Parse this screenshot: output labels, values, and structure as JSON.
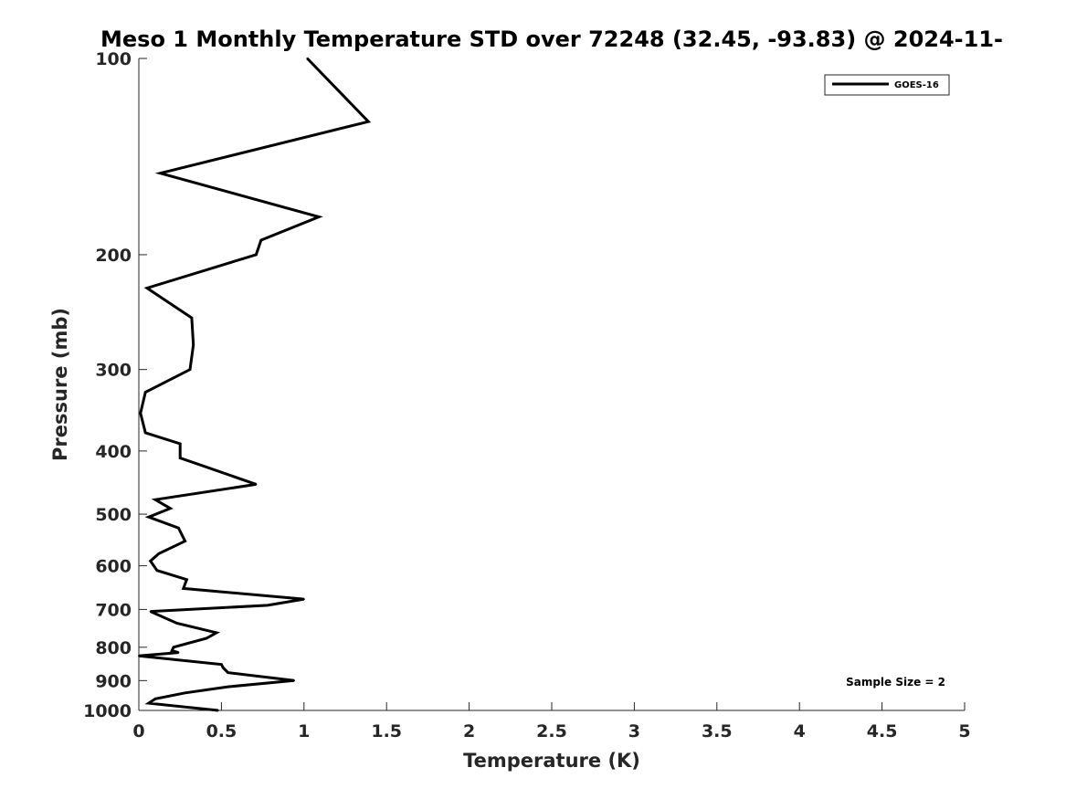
{
  "chart_data": {
    "type": "line",
    "title": "Meso 1 Monthly Temperature STD over 72248 (32.45, -93.83) @ 2024-11-",
    "xlabel": "Temperature (K)",
    "ylabel": "Pressure (mb)",
    "xlim": [
      0,
      5
    ],
    "ylim": [
      100,
      1000
    ],
    "y_reversed": true,
    "y_scale": "log",
    "x_ticks": [
      "0",
      "0.5",
      "1",
      "1.5",
      "2",
      "2.5",
      "3",
      "3.5",
      "4",
      "4.5",
      "5"
    ],
    "y_ticks": [
      "100",
      "200",
      "300",
      "400",
      "500",
      "600",
      "700",
      "800",
      "900",
      "1000"
    ],
    "legend": {
      "position": "top-right",
      "entries": [
        "GOES-16"
      ]
    },
    "annotation": "Sample Size = 2",
    "series": [
      {
        "name": "GOES-16",
        "color": "#000000",
        "points": [
          [
            1.02,
            100
          ],
          [
            1.39,
            125
          ],
          [
            0.13,
            150
          ],
          [
            1.09,
            175
          ],
          [
            0.74,
            190
          ],
          [
            0.71,
            200
          ],
          [
            0.05,
            225
          ],
          [
            0.32,
            250
          ],
          [
            0.33,
            275
          ],
          [
            0.31,
            300
          ],
          [
            0.04,
            325
          ],
          [
            0.01,
            350
          ],
          [
            0.04,
            375
          ],
          [
            0.25,
            390
          ],
          [
            0.25,
            410
          ],
          [
            0.71,
            450
          ],
          [
            0.1,
            475
          ],
          [
            0.19,
            490
          ],
          [
            0.06,
            505
          ],
          [
            0.24,
            525
          ],
          [
            0.28,
            550
          ],
          [
            0.12,
            575
          ],
          [
            0.07,
            590
          ],
          [
            0.11,
            610
          ],
          [
            0.29,
            630
          ],
          [
            0.27,
            650
          ],
          [
            1.0,
            675
          ],
          [
            0.78,
            690
          ],
          [
            0.07,
            705
          ],
          [
            0.23,
            735
          ],
          [
            0.47,
            760
          ],
          [
            0.41,
            775
          ],
          [
            0.21,
            800
          ],
          [
            0.2,
            810
          ],
          [
            0.24,
            815
          ],
          [
            0.0,
            825
          ],
          [
            0.5,
            850
          ],
          [
            0.51,
            860
          ],
          [
            0.54,
            875
          ],
          [
            0.94,
            900
          ],
          [
            0.54,
            920
          ],
          [
            0.28,
            940
          ],
          [
            0.1,
            960
          ],
          [
            0.06,
            975
          ],
          [
            0.48,
            1000
          ]
        ]
      }
    ]
  }
}
